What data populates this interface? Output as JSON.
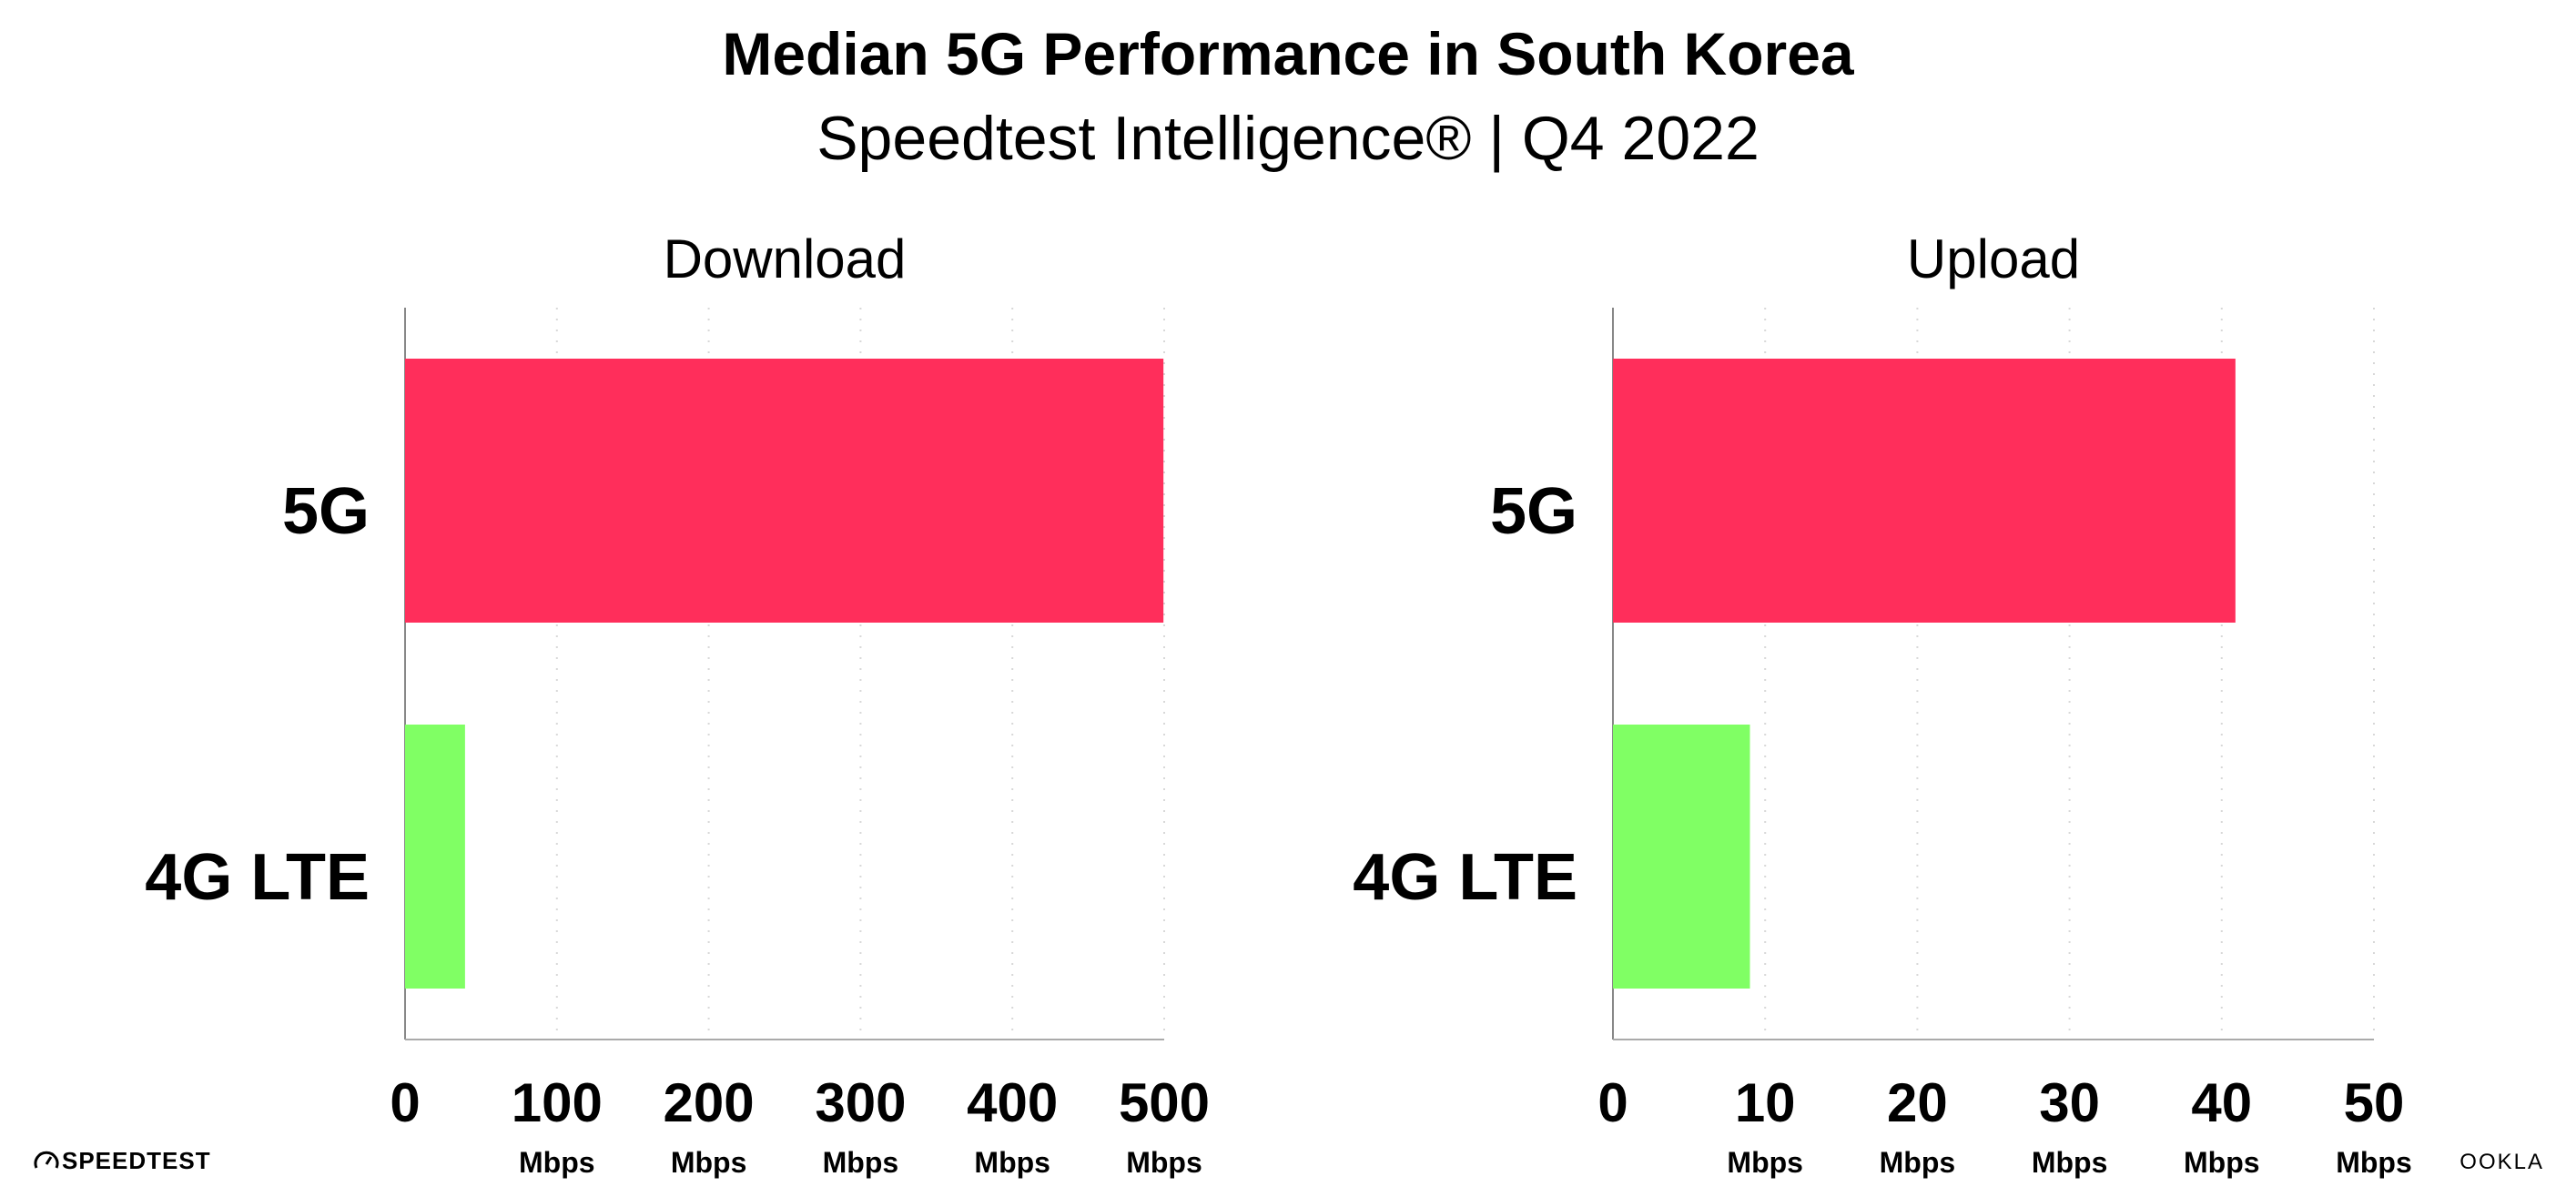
{
  "chart_data": [
    {
      "type": "bar",
      "orientation": "horizontal",
      "title": "Download",
      "categories": [
        "5G",
        "4G LTE"
      ],
      "values": [
        499.5,
        39.5
      ],
      "colors": [
        "#FF2E5B",
        "#80FF64"
      ],
      "xlim": [
        0,
        500
      ],
      "xticks": [
        "0",
        "100",
        "200",
        "300",
        "400",
        "500"
      ],
      "xtick_values": [
        0,
        100,
        200,
        300,
        400,
        500
      ],
      "unit": "Mbps",
      "grid": "vertical dotted"
    },
    {
      "type": "bar",
      "orientation": "horizontal",
      "title": "Upload",
      "categories": [
        "5G",
        "4G LTE"
      ],
      "values": [
        40.9,
        9.0
      ],
      "colors": [
        "#FF2E5B",
        "#80FF64"
      ],
      "xlim": [
        0,
        50
      ],
      "xticks": [
        "0",
        "10",
        "20",
        "30",
        "40",
        "50"
      ],
      "xtick_values": [
        0,
        10,
        20,
        30,
        40,
        50
      ],
      "unit": "Mbps",
      "grid": "vertical dotted"
    }
  ],
  "header": {
    "title": "Median 5G Performance in South Korea",
    "subtitle": "Speedtest Intelligence® | Q4 2022"
  },
  "footer": {
    "left_logo": "SPEEDTEST",
    "right_logo": "OOKLA"
  }
}
